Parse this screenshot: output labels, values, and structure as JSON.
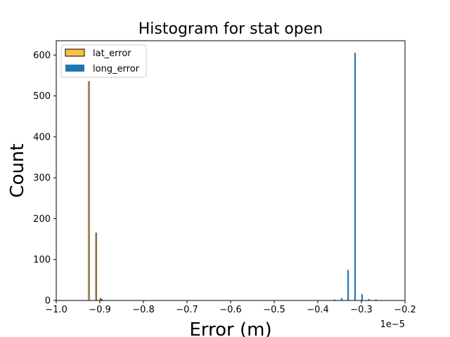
{
  "chart_data": {
    "type": "bar",
    "title": "Histogram for stat open",
    "xlabel": "Error (m)",
    "ylabel": "Count",
    "x_scale_note": "1e−5",
    "xlim": [
      -1.0,
      -0.2
    ],
    "ylim": [
      0,
      635
    ],
    "x_ticks": [
      -1.0,
      -0.9,
      -0.8,
      -0.7,
      -0.6,
      -0.5,
      -0.4,
      -0.3,
      -0.2
    ],
    "x_tick_labels": [
      "−1.0",
      "−0.9",
      "−0.8",
      "−0.7",
      "−0.6",
      "−0.5",
      "−0.4",
      "−0.3",
      "−0.2"
    ],
    "y_ticks": [
      0,
      100,
      200,
      300,
      400,
      500,
      600
    ],
    "y_tick_labels": [
      "0",
      "100",
      "200",
      "300",
      "400",
      "500",
      "600"
    ],
    "grid": false,
    "legend_placement": "top-left",
    "series": [
      {
        "name": "lat_error",
        "color": "#ffbf40",
        "edge_color": "#000000",
        "bins": [
          {
            "x": -0.925,
            "count": 535
          },
          {
            "x": -0.9085,
            "count": 165
          },
          {
            "x": -0.8985,
            "count": 5
          },
          {
            "x": -0.895,
            "count": 2
          }
        ]
      },
      {
        "name": "long_error",
        "color": "#1f77b4",
        "edge_color": "#1f77b4",
        "bins": [
          {
            "x": -0.362,
            "count": 2
          },
          {
            "x": -0.3455,
            "count": 5
          },
          {
            "x": -0.3305,
            "count": 74
          },
          {
            "x": -0.3145,
            "count": 605
          },
          {
            "x": -0.2985,
            "count": 15
          },
          {
            "x": -0.283,
            "count": 3
          },
          {
            "x": -0.2665,
            "count": 2
          }
        ]
      }
    ]
  }
}
